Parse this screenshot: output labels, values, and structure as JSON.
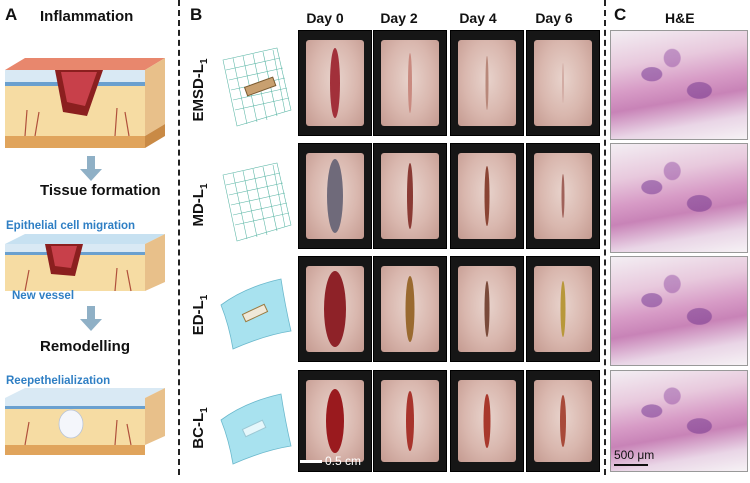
{
  "panel_a": {
    "letter": "A",
    "stage_1": "Inflammation",
    "stage_2": "Tissue formation",
    "stage_3": "Remodelling",
    "label_migration": "Epithelial cell migration",
    "label_vessel": "New vessel",
    "label_reepith": "Reepethelialization"
  },
  "panel_b": {
    "letter": "B",
    "days": [
      "Day 0",
      "Day 2",
      "Day 4",
      "Day 6"
    ],
    "rows": [
      {
        "name": "EMSD-L",
        "sub": "1"
      },
      {
        "name": "MD-L",
        "sub": "1"
      },
      {
        "name": "ED-L",
        "sub": "1"
      },
      {
        "name": "BC-L",
        "sub": "1"
      }
    ],
    "scale_bar": "0.5 cm"
  },
  "panel_c": {
    "letter": "C",
    "title": "H&E",
    "scale_bar": "500 μm"
  },
  "colors": {
    "accent_blue": "#2f7fc4",
    "arrow": "#8fb0c6",
    "he_stain": "#d79bc6"
  }
}
